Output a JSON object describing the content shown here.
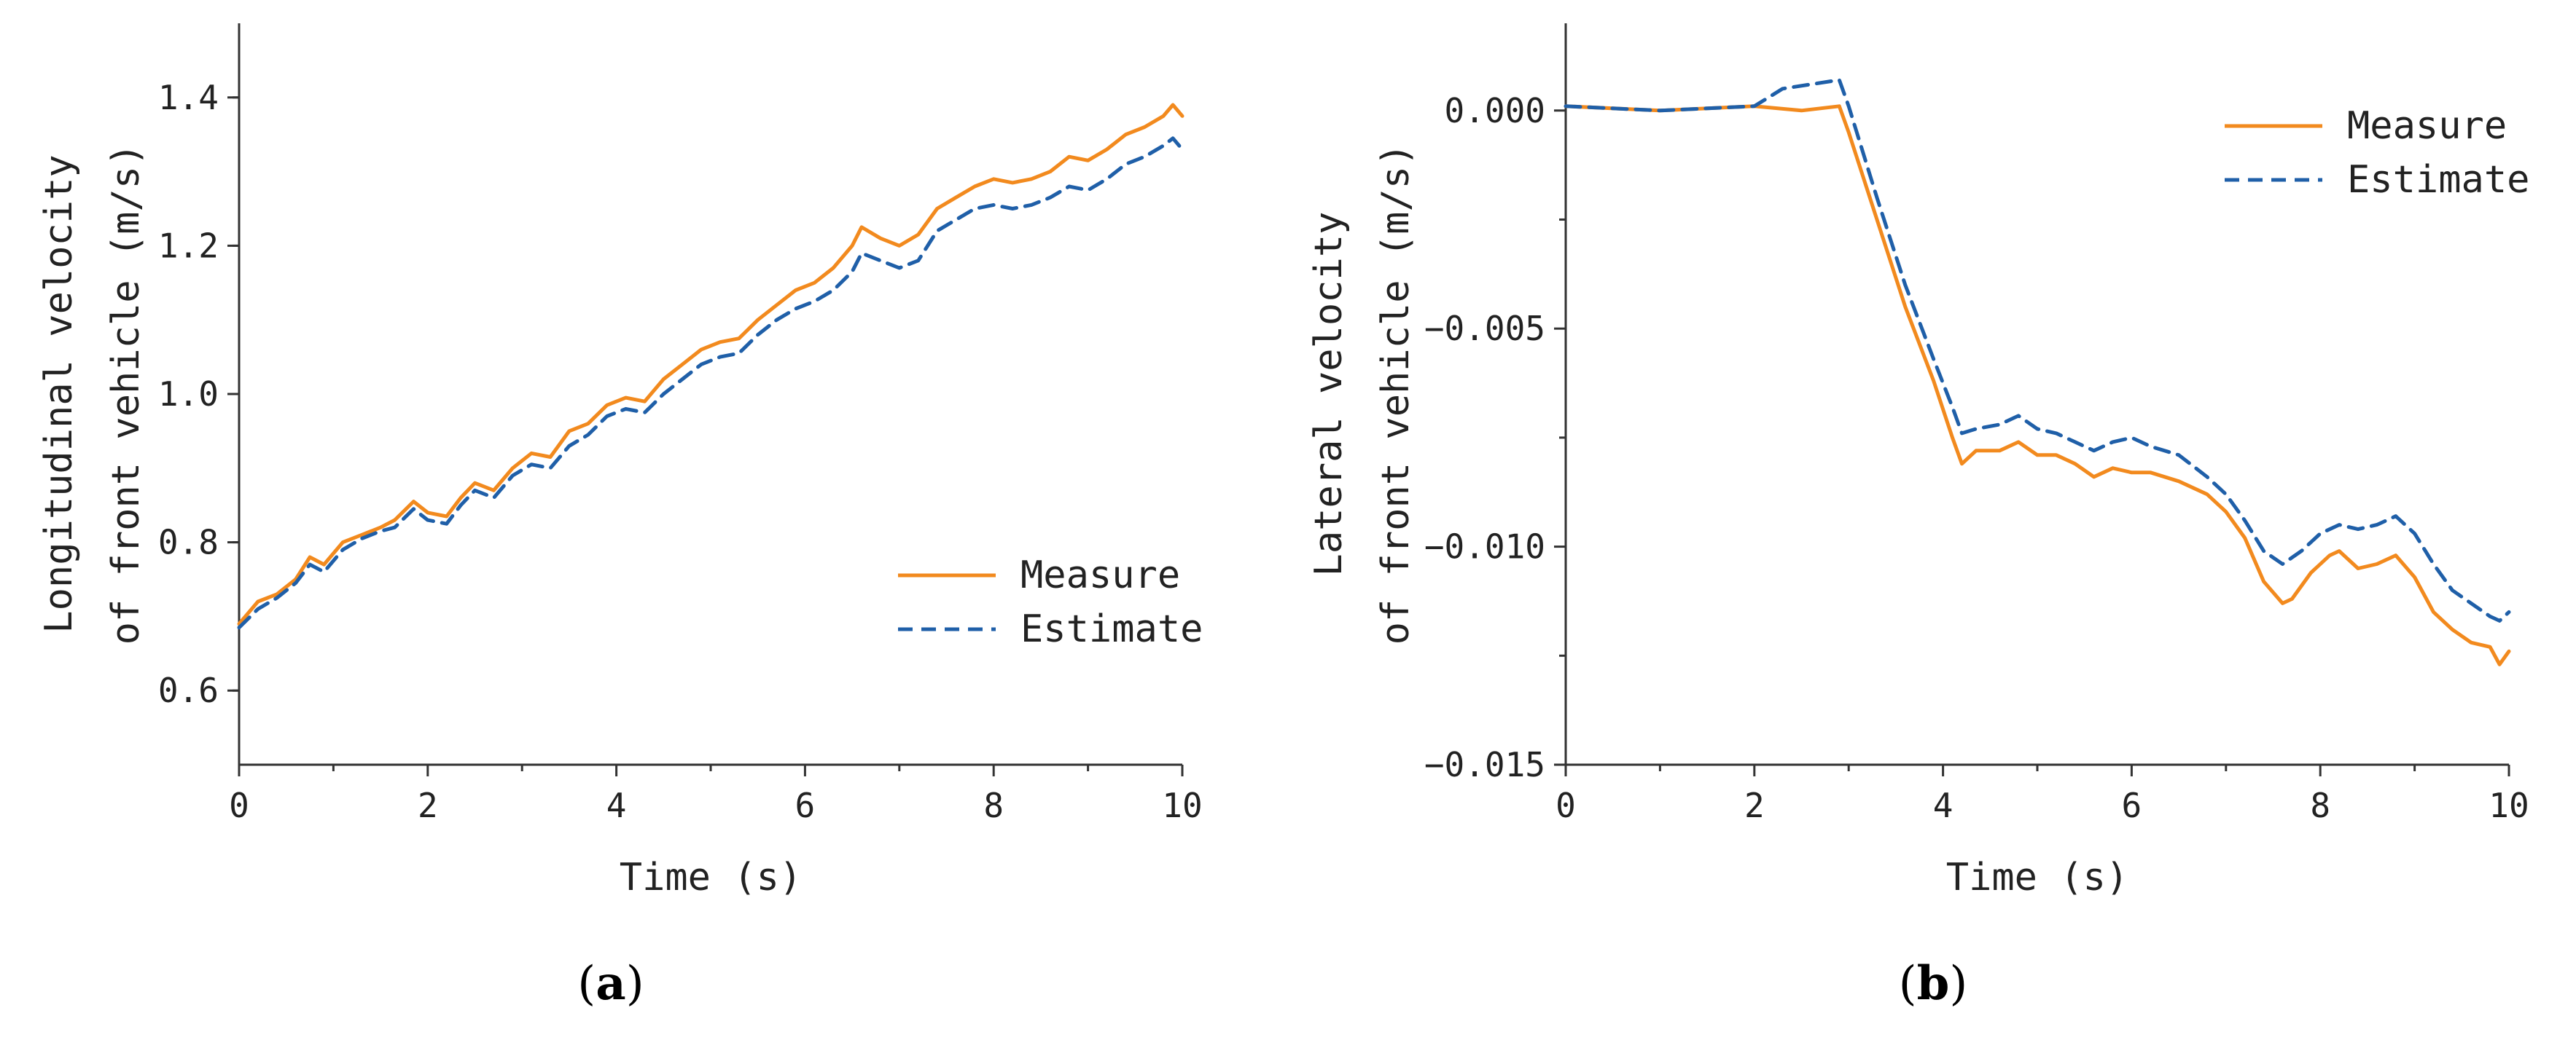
{
  "colors": {
    "measure": "#F28A1E",
    "estimate": "#1F5FA8",
    "axis": "#333333"
  },
  "chart_data": [
    {
      "type": "line",
      "panel_label": "a",
      "title": "",
      "xlabel": "Time (s)",
      "ylabel_lines": [
        "Longitudinal velocity",
        "of front vehicle (m/s)"
      ],
      "xlim": [
        0,
        10
      ],
      "ylim": [
        0.5,
        1.5
      ],
      "xticks": [
        0,
        2,
        4,
        6,
        8,
        10
      ],
      "xtick_labels": [
        "0",
        "2",
        "4",
        "6",
        "8",
        "10"
      ],
      "yticks": [
        0.6,
        0.8,
        1.0,
        1.2,
        1.4
      ],
      "ytick_labels": [
        "0.6",
        "0.8",
        "1.0",
        "1.2",
        "1.4"
      ],
      "legend_position": "center-right",
      "series": [
        {
          "name": "Measure",
          "style": "solid",
          "x": [
            0,
            0.2,
            0.4,
            0.6,
            0.75,
            0.9,
            1.1,
            1.3,
            1.5,
            1.65,
            1.85,
            2.0,
            2.2,
            2.35,
            2.5,
            2.7,
            2.9,
            3.1,
            3.3,
            3.5,
            3.7,
            3.9,
            4.1,
            4.3,
            4.5,
            4.7,
            4.9,
            5.1,
            5.3,
            5.5,
            5.7,
            5.9,
            6.1,
            6.3,
            6.5,
            6.6,
            6.8,
            7.0,
            7.2,
            7.4,
            7.6,
            7.8,
            8.0,
            8.2,
            8.4,
            8.6,
            8.8,
            9.0,
            9.2,
            9.4,
            9.6,
            9.8,
            9.9,
            10.0
          ],
          "y": [
            0.69,
            0.72,
            0.73,
            0.75,
            0.78,
            0.77,
            0.8,
            0.81,
            0.82,
            0.83,
            0.855,
            0.84,
            0.835,
            0.86,
            0.88,
            0.87,
            0.9,
            0.92,
            0.915,
            0.95,
            0.96,
            0.985,
            0.995,
            0.99,
            1.02,
            1.04,
            1.06,
            1.07,
            1.075,
            1.1,
            1.12,
            1.14,
            1.15,
            1.17,
            1.2,
            1.225,
            1.21,
            1.2,
            1.215,
            1.25,
            1.265,
            1.28,
            1.29,
            1.285,
            1.29,
            1.3,
            1.32,
            1.315,
            1.33,
            1.35,
            1.36,
            1.375,
            1.39,
            1.375
          ]
        },
        {
          "name": "Estimate",
          "style": "dashed",
          "x": [
            0,
            0.2,
            0.4,
            0.6,
            0.75,
            0.9,
            1.1,
            1.3,
            1.5,
            1.65,
            1.85,
            2.0,
            2.2,
            2.35,
            2.5,
            2.7,
            2.9,
            3.1,
            3.3,
            3.5,
            3.7,
            3.9,
            4.1,
            4.3,
            4.5,
            4.7,
            4.9,
            5.1,
            5.3,
            5.5,
            5.7,
            5.9,
            6.1,
            6.3,
            6.5,
            6.6,
            6.8,
            7.0,
            7.2,
            7.4,
            7.6,
            7.8,
            8.0,
            8.2,
            8.4,
            8.6,
            8.8,
            9.0,
            9.2,
            9.4,
            9.6,
            9.8,
            9.9,
            10.0
          ],
          "y": [
            0.685,
            0.71,
            0.725,
            0.745,
            0.77,
            0.76,
            0.79,
            0.805,
            0.815,
            0.82,
            0.845,
            0.83,
            0.825,
            0.85,
            0.87,
            0.86,
            0.89,
            0.905,
            0.9,
            0.93,
            0.945,
            0.97,
            0.98,
            0.975,
            1.0,
            1.02,
            1.04,
            1.05,
            1.055,
            1.08,
            1.1,
            1.115,
            1.125,
            1.14,
            1.165,
            1.19,
            1.18,
            1.17,
            1.18,
            1.22,
            1.235,
            1.25,
            1.255,
            1.25,
            1.255,
            1.265,
            1.28,
            1.275,
            1.29,
            1.31,
            1.32,
            1.335,
            1.345,
            1.33
          ]
        }
      ]
    },
    {
      "type": "line",
      "panel_label": "b",
      "title": "",
      "xlabel": "Time (s)",
      "ylabel_lines": [
        "Lateral velocity",
        "of front vehicle (m/s)"
      ],
      "xlim": [
        0,
        10
      ],
      "ylim": [
        -0.015,
        0.002
      ],
      "xticks": [
        0,
        2,
        4,
        6,
        8,
        10
      ],
      "xtick_labels": [
        "0",
        "2",
        "4",
        "6",
        "8",
        "10"
      ],
      "yticks": [
        0.0,
        -0.005,
        -0.01,
        -0.015
      ],
      "ytick_labels": [
        "0.000",
        "−0.005",
        "−0.010",
        "−0.015"
      ],
      "legend_position": "top-right",
      "series": [
        {
          "name": "Measure",
          "style": "solid",
          "x": [
            0,
            1.0,
            2.0,
            2.5,
            2.9,
            3.0,
            3.3,
            3.6,
            3.9,
            4.1,
            4.2,
            4.35,
            4.6,
            4.8,
            5.0,
            5.2,
            5.4,
            5.6,
            5.8,
            6.0,
            6.2,
            6.5,
            6.8,
            7.0,
            7.2,
            7.4,
            7.6,
            7.7,
            7.9,
            8.1,
            8.2,
            8.4,
            8.6,
            8.8,
            9.0,
            9.2,
            9.4,
            9.6,
            9.8,
            9.9,
            10.0
          ],
          "y": [
            0.0001,
            0.0,
            0.0001,
            0.0,
            0.0001,
            -0.0005,
            -0.0025,
            -0.0045,
            -0.0062,
            -0.0075,
            -0.0081,
            -0.0078,
            -0.0078,
            -0.0076,
            -0.0079,
            -0.0079,
            -0.0081,
            -0.0084,
            -0.0082,
            -0.0083,
            -0.0083,
            -0.0085,
            -0.0088,
            -0.0092,
            -0.0098,
            -0.0108,
            -0.0113,
            -0.0112,
            -0.0106,
            -0.0102,
            -0.0101,
            -0.0105,
            -0.0104,
            -0.0102,
            -0.0107,
            -0.0115,
            -0.0119,
            -0.0122,
            -0.0123,
            -0.0127,
            -0.0124
          ]
        },
        {
          "name": "Estimate",
          "style": "dashed",
          "x": [
            0,
            1.0,
            2.0,
            2.3,
            2.6,
            2.9,
            3.0,
            3.3,
            3.6,
            3.9,
            4.1,
            4.2,
            4.35,
            4.6,
            4.8,
            5.0,
            5.2,
            5.4,
            5.6,
            5.8,
            6.0,
            6.2,
            6.5,
            6.8,
            7.0,
            7.2,
            7.4,
            7.6,
            7.8,
            8.0,
            8.2,
            8.4,
            8.6,
            8.8,
            9.0,
            9.2,
            9.4,
            9.6,
            9.8,
            9.9,
            10.0
          ],
          "y": [
            0.0001,
            0.0,
            0.0001,
            0.0005,
            0.0006,
            0.0007,
            0.0001,
            -0.002,
            -0.004,
            -0.0057,
            -0.0068,
            -0.0074,
            -0.0073,
            -0.0072,
            -0.007,
            -0.0073,
            -0.0074,
            -0.0076,
            -0.0078,
            -0.0076,
            -0.0075,
            -0.0077,
            -0.0079,
            -0.0084,
            -0.0088,
            -0.0094,
            -0.0101,
            -0.0104,
            -0.0101,
            -0.0097,
            -0.0095,
            -0.0096,
            -0.0095,
            -0.0093,
            -0.0097,
            -0.0104,
            -0.011,
            -0.0113,
            -0.0116,
            -0.0117,
            -0.0115
          ]
        }
      ]
    }
  ]
}
